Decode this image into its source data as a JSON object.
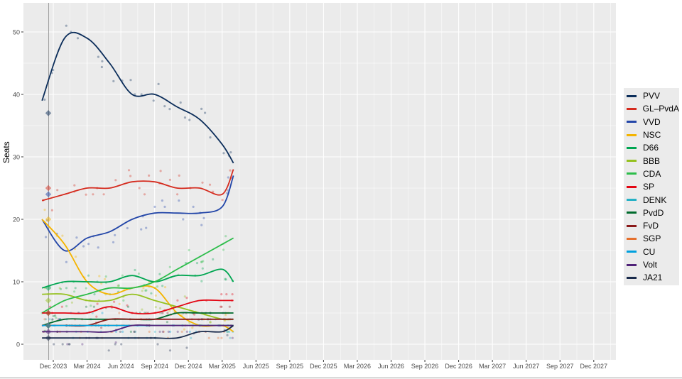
{
  "chart_data": {
    "type": "line",
    "ylabel": "Seats",
    "xlabel": "",
    "ylim": [
      -2,
      54
    ],
    "yticks": [
      0,
      10,
      20,
      30,
      40,
      50
    ],
    "xticks": [
      "Dec 2023",
      "Mar 2024",
      "Jun 2024",
      "Sep 2024",
      "Dec 2024",
      "Mar 2025",
      "Jun 2025",
      "Sep 2025",
      "Dec 2025",
      "Mar 2026",
      "Jun 2026",
      "Sep 2026",
      "Dec 2026",
      "Mar 2027",
      "Jun 2027",
      "Sep 2027",
      "Dec 2027"
    ],
    "x_months": [
      "2023-11",
      "2024-01",
      "2024-03",
      "2024-05",
      "2024-07",
      "2024-09",
      "2024-11",
      "2025-01",
      "2025-03",
      "2025-04"
    ],
    "grid": true,
    "legend_position": "right",
    "series": [
      {
        "name": "PVV",
        "color": "#0b2d5a",
        "values": [
          39,
          49,
          49,
          45,
          40,
          40,
          38,
          36,
          32,
          29
        ],
        "election": 37
      },
      {
        "name": "GL–PvdA",
        "color": "#d52b1e",
        "values": [
          23,
          24,
          25,
          25,
          26,
          26,
          25,
          25,
          24,
          28
        ],
        "election": 25
      },
      {
        "name": "VVD",
        "color": "#2346a8",
        "values": [
          20,
          15,
          17,
          18,
          20,
          21,
          21,
          21,
          22,
          27
        ],
        "election": 24
      },
      {
        "name": "NSC",
        "color": "#f4b400",
        "values": [
          20,
          16,
          10,
          8,
          9,
          9,
          5,
          3,
          3,
          2
        ],
        "election": 20
      },
      {
        "name": "D66",
        "color": "#00a651",
        "values": [
          9,
          10,
          10,
          10,
          11,
          10,
          11,
          11,
          12,
          10
        ],
        "election": 9
      },
      {
        "name": "BBB",
        "color": "#95c11f",
        "values": [
          8,
          8,
          7,
          7,
          8,
          7,
          6,
          5,
          4,
          4
        ],
        "election": 7
      },
      {
        "name": "CDA",
        "color": "#2dbd4b",
        "values": [
          5,
          7,
          8,
          9,
          9,
          10,
          12,
          14,
          16,
          17
        ],
        "election": 5
      },
      {
        "name": "SP",
        "color": "#e30613",
        "values": [
          5,
          5,
          5,
          6,
          5,
          5,
          6,
          7,
          7,
          7
        ],
        "election": 5
      },
      {
        "name": "DENK",
        "color": "#26b1c6",
        "values": [
          3,
          3,
          3,
          3,
          3,
          3,
          3,
          3,
          3,
          3
        ],
        "election": 3
      },
      {
        "name": "PvdD",
        "color": "#006b2d",
        "values": [
          3,
          4,
          4,
          4,
          4,
          4,
          5,
          5,
          5,
          5
        ],
        "election": 3
      },
      {
        "name": "FvD",
        "color": "#8b1a1a",
        "values": [
          3,
          3,
          3,
          4,
          4,
          4,
          4,
          4,
          4,
          4
        ],
        "election": 3
      },
      {
        "name": "SGP",
        "color": "#e5702d",
        "values": [
          3,
          3,
          3,
          3,
          3,
          3,
          3,
          3,
          3,
          3
        ],
        "election": 3
      },
      {
        "name": "CU",
        "color": "#00a0de",
        "values": [
          3,
          3,
          3,
          3,
          3,
          3,
          3,
          3,
          3,
          3
        ],
        "election": 3
      },
      {
        "name": "Volt",
        "color": "#502379",
        "values": [
          2,
          2,
          2,
          2,
          3,
          3,
          3,
          3,
          3,
          3
        ],
        "election": 2
      },
      {
        "name": "JA21",
        "color": "#1a2b4c",
        "values": [
          1,
          1,
          1,
          1,
          1,
          1,
          1,
          2,
          2,
          3
        ],
        "election": 1
      }
    ]
  }
}
